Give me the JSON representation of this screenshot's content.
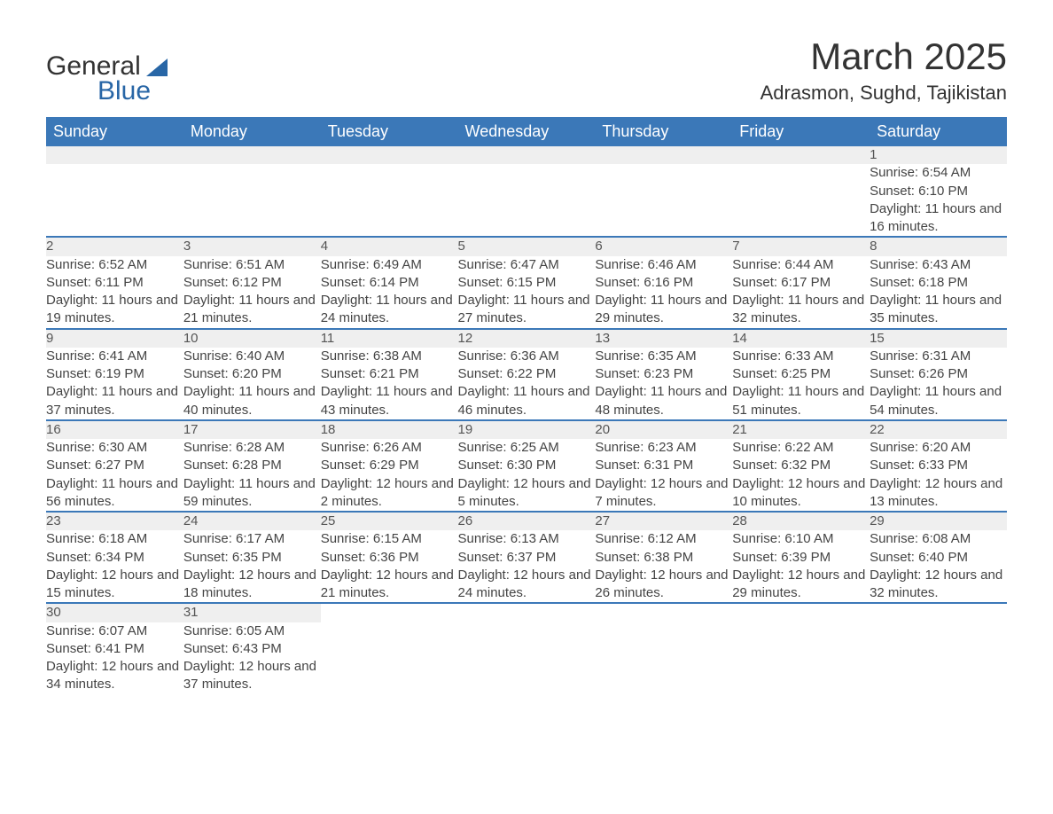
{
  "logo": {
    "text1": "General",
    "text2": "Blue",
    "accent_color": "#2866a6"
  },
  "title": {
    "month": "March 2025",
    "location": "Adrasmon, Sughd, Tajikistan"
  },
  "calendar": {
    "header_bg": "#3b78b8",
    "header_fg": "#ffffff",
    "row_divider_color": "#3b78b8",
    "daynum_bg": "#efefef",
    "text_color": "#444444",
    "font_size_header": 18,
    "font_size_daynum": 17,
    "font_size_detail": 15,
    "columns": [
      "Sunday",
      "Monday",
      "Tuesday",
      "Wednesday",
      "Thursday",
      "Friday",
      "Saturday"
    ],
    "weeks": [
      [
        null,
        null,
        null,
        null,
        null,
        null,
        {
          "n": "1",
          "sr": "Sunrise: 6:54 AM",
          "ss": "Sunset: 6:10 PM",
          "dl": "Daylight: 11 hours and 16 minutes."
        }
      ],
      [
        {
          "n": "2",
          "sr": "Sunrise: 6:52 AM",
          "ss": "Sunset: 6:11 PM",
          "dl": "Daylight: 11 hours and 19 minutes."
        },
        {
          "n": "3",
          "sr": "Sunrise: 6:51 AM",
          "ss": "Sunset: 6:12 PM",
          "dl": "Daylight: 11 hours and 21 minutes."
        },
        {
          "n": "4",
          "sr": "Sunrise: 6:49 AM",
          "ss": "Sunset: 6:14 PM",
          "dl": "Daylight: 11 hours and 24 minutes."
        },
        {
          "n": "5",
          "sr": "Sunrise: 6:47 AM",
          "ss": "Sunset: 6:15 PM",
          "dl": "Daylight: 11 hours and 27 minutes."
        },
        {
          "n": "6",
          "sr": "Sunrise: 6:46 AM",
          "ss": "Sunset: 6:16 PM",
          "dl": "Daylight: 11 hours and 29 minutes."
        },
        {
          "n": "7",
          "sr": "Sunrise: 6:44 AM",
          "ss": "Sunset: 6:17 PM",
          "dl": "Daylight: 11 hours and 32 minutes."
        },
        {
          "n": "8",
          "sr": "Sunrise: 6:43 AM",
          "ss": "Sunset: 6:18 PM",
          "dl": "Daylight: 11 hours and 35 minutes."
        }
      ],
      [
        {
          "n": "9",
          "sr": "Sunrise: 6:41 AM",
          "ss": "Sunset: 6:19 PM",
          "dl": "Daylight: 11 hours and 37 minutes."
        },
        {
          "n": "10",
          "sr": "Sunrise: 6:40 AM",
          "ss": "Sunset: 6:20 PM",
          "dl": "Daylight: 11 hours and 40 minutes."
        },
        {
          "n": "11",
          "sr": "Sunrise: 6:38 AM",
          "ss": "Sunset: 6:21 PM",
          "dl": "Daylight: 11 hours and 43 minutes."
        },
        {
          "n": "12",
          "sr": "Sunrise: 6:36 AM",
          "ss": "Sunset: 6:22 PM",
          "dl": "Daylight: 11 hours and 46 minutes."
        },
        {
          "n": "13",
          "sr": "Sunrise: 6:35 AM",
          "ss": "Sunset: 6:23 PM",
          "dl": "Daylight: 11 hours and 48 minutes."
        },
        {
          "n": "14",
          "sr": "Sunrise: 6:33 AM",
          "ss": "Sunset: 6:25 PM",
          "dl": "Daylight: 11 hours and 51 minutes."
        },
        {
          "n": "15",
          "sr": "Sunrise: 6:31 AM",
          "ss": "Sunset: 6:26 PM",
          "dl": "Daylight: 11 hours and 54 minutes."
        }
      ],
      [
        {
          "n": "16",
          "sr": "Sunrise: 6:30 AM",
          "ss": "Sunset: 6:27 PM",
          "dl": "Daylight: 11 hours and 56 minutes."
        },
        {
          "n": "17",
          "sr": "Sunrise: 6:28 AM",
          "ss": "Sunset: 6:28 PM",
          "dl": "Daylight: 11 hours and 59 minutes."
        },
        {
          "n": "18",
          "sr": "Sunrise: 6:26 AM",
          "ss": "Sunset: 6:29 PM",
          "dl": "Daylight: 12 hours and 2 minutes."
        },
        {
          "n": "19",
          "sr": "Sunrise: 6:25 AM",
          "ss": "Sunset: 6:30 PM",
          "dl": "Daylight: 12 hours and 5 minutes."
        },
        {
          "n": "20",
          "sr": "Sunrise: 6:23 AM",
          "ss": "Sunset: 6:31 PM",
          "dl": "Daylight: 12 hours and 7 minutes."
        },
        {
          "n": "21",
          "sr": "Sunrise: 6:22 AM",
          "ss": "Sunset: 6:32 PM",
          "dl": "Daylight: 12 hours and 10 minutes."
        },
        {
          "n": "22",
          "sr": "Sunrise: 6:20 AM",
          "ss": "Sunset: 6:33 PM",
          "dl": "Daylight: 12 hours and 13 minutes."
        }
      ],
      [
        {
          "n": "23",
          "sr": "Sunrise: 6:18 AM",
          "ss": "Sunset: 6:34 PM",
          "dl": "Daylight: 12 hours and 15 minutes."
        },
        {
          "n": "24",
          "sr": "Sunrise: 6:17 AM",
          "ss": "Sunset: 6:35 PM",
          "dl": "Daylight: 12 hours and 18 minutes."
        },
        {
          "n": "25",
          "sr": "Sunrise: 6:15 AM",
          "ss": "Sunset: 6:36 PM",
          "dl": "Daylight: 12 hours and 21 minutes."
        },
        {
          "n": "26",
          "sr": "Sunrise: 6:13 AM",
          "ss": "Sunset: 6:37 PM",
          "dl": "Daylight: 12 hours and 24 minutes."
        },
        {
          "n": "27",
          "sr": "Sunrise: 6:12 AM",
          "ss": "Sunset: 6:38 PM",
          "dl": "Daylight: 12 hours and 26 minutes."
        },
        {
          "n": "28",
          "sr": "Sunrise: 6:10 AM",
          "ss": "Sunset: 6:39 PM",
          "dl": "Daylight: 12 hours and 29 minutes."
        },
        {
          "n": "29",
          "sr": "Sunrise: 6:08 AM",
          "ss": "Sunset: 6:40 PM",
          "dl": "Daylight: 12 hours and 32 minutes."
        }
      ],
      [
        {
          "n": "30",
          "sr": "Sunrise: 6:07 AM",
          "ss": "Sunset: 6:41 PM",
          "dl": "Daylight: 12 hours and 34 minutes."
        },
        {
          "n": "31",
          "sr": "Sunrise: 6:05 AM",
          "ss": "Sunset: 6:43 PM",
          "dl": "Daylight: 12 hours and 37 minutes."
        },
        null,
        null,
        null,
        null,
        null
      ]
    ]
  }
}
